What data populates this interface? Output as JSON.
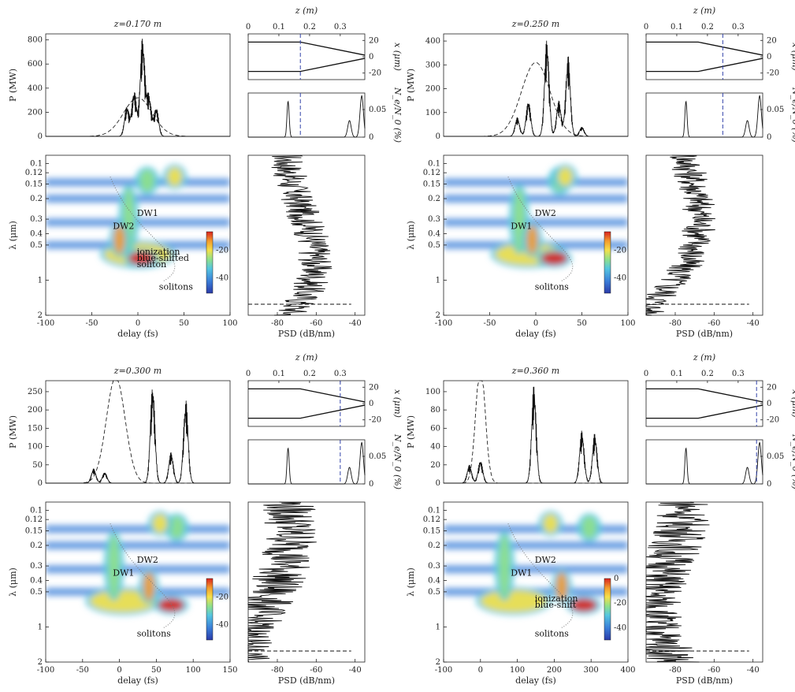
{
  "chart_data": [
    {
      "type": "spectrogram-panel",
      "title": "z=0.170 m",
      "power": {
        "ylabel": "P (MW)",
        "ylim": [
          0,
          850
        ],
        "yticks": [
          "0",
          "200",
          "400",
          "600",
          "800"
        ],
        "xlim": [
          -100,
          100
        ],
        "peak_delay": 5,
        "peak_value": 820,
        "envelope_delay": 0,
        "envelope_width": 22,
        "envelope_height": 320,
        "burst_delays": [
          -12,
          -4,
          5,
          12,
          20
        ],
        "burst_heights": [
          250,
          380,
          820,
          340,
          240
        ]
      },
      "geometry": {
        "xlabel_top": "z (m)",
        "xticks_top": [
          "0",
          "0.1",
          "0.2",
          "0.3"
        ],
        "zlim": [
          0,
          0.38
        ],
        "ylabel": "x (μm)",
        "yticks": [
          "20",
          "0",
          "-20"
        ],
        "ylim": [
          -28,
          28
        ],
        "taper_start": 0.17,
        "taper_end_radius": 2,
        "radius": 18,
        "marker_z": 0.17
      },
      "ionization": {
        "ylabel": "N_e/N_0 (%)",
        "yticks": [
          "0",
          "0.05"
        ],
        "ylim": [
          0,
          0.08
        ],
        "peaks_z": [
          0.13,
          0.33,
          0.37
        ],
        "peaks_val": [
          0.065,
          0.03,
          0.075
        ],
        "marker_z": 0.17
      },
      "spectrogram": {
        "ylabel": "λ (μm)",
        "xlabel": "delay (fs)",
        "yticks": [
          "0.1",
          "0.12",
          "0.15",
          "0.2",
          "0.3",
          "0.4",
          "0.5",
          "1",
          "2"
        ],
        "xticks": [
          "-100",
          "-50",
          "0",
          "50",
          "100"
        ],
        "xlim": [
          -100,
          100
        ],
        "colorbar_ticks": [
          "-20",
          "-40"
        ],
        "annotations": [
          "DW1",
          "DW2",
          "ionization",
          "blue-shifted",
          "soliton",
          "solitons"
        ]
      },
      "psd": {
        "xlabel": "PSD (dB/nm)",
        "xticks": [
          "-80",
          "-60",
          "-40"
        ],
        "xlim": [
          -95,
          -35
        ]
      }
    },
    {
      "type": "spectrogram-panel",
      "title": "z=0.250 m",
      "power": {
        "ylabel": "P (MW)",
        "ylim": [
          0,
          430
        ],
        "yticks": [
          "0",
          "100",
          "200",
          "300",
          "400"
        ],
        "xlim": [
          -100,
          100
        ],
        "peak_delay": 12,
        "peak_value": 410,
        "envelope_delay": 0,
        "envelope_width": 22,
        "envelope_height": 310,
        "burst_delays": [
          -20,
          -8,
          12,
          25,
          35,
          50
        ],
        "burst_heights": [
          80,
          150,
          410,
          150,
          340,
          40
        ]
      },
      "geometry": {
        "xlabel_top": "z (m)",
        "xticks_top": [
          "0",
          "0.1",
          "0.2",
          "0.3"
        ],
        "zlim": [
          0,
          0.38
        ],
        "ylabel": "x (μm)",
        "yticks": [
          "20",
          "0",
          "-20"
        ],
        "ylim": [
          -28,
          28
        ],
        "taper_start": 0.17,
        "taper_end_radius": 2,
        "radius": 18,
        "marker_z": 0.25
      },
      "ionization": {
        "ylabel": "N_e/N_0 (%)",
        "yticks": [
          "0",
          "0.05"
        ],
        "ylim": [
          0,
          0.08
        ],
        "peaks_z": [
          0.13,
          0.33,
          0.37
        ],
        "peaks_val": [
          0.065,
          0.03,
          0.075
        ],
        "marker_z": 0.25
      },
      "spectrogram": {
        "ylabel": "λ (μm)",
        "xlabel": "delay (fs)",
        "yticks": [
          "0.1",
          "0.12",
          "0.15",
          "0.2",
          "0.3",
          "0.4",
          "0.5",
          "1",
          "2"
        ],
        "xticks": [
          "-100",
          "-50",
          "0",
          "50",
          "100"
        ],
        "xlim": [
          -100,
          100
        ],
        "colorbar_ticks": [
          "-20",
          "-40"
        ],
        "annotations": [
          "DW2",
          "DW1",
          "solitons"
        ]
      },
      "psd": {
        "xlabel": "PSD (dB/nm)",
        "xticks": [
          "-80",
          "-60",
          "-40"
        ],
        "xlim": [
          -95,
          -35
        ]
      }
    },
    {
      "type": "spectrogram-panel",
      "title": "z=0.300 m",
      "power": {
        "ylabel": "P (MW)",
        "ylim": [
          0,
          280
        ],
        "yticks": [
          "0",
          "50",
          "100",
          "150",
          "200",
          "250"
        ],
        "xlim": [
          -100,
          150
        ],
        "peak_delay": 45,
        "peak_value": 270,
        "envelope_delay": -5,
        "envelope_width": 18,
        "envelope_height": 290,
        "burst_delays": [
          -35,
          -20,
          45,
          70,
          90
        ],
        "burst_heights": [
          40,
          30,
          270,
          85,
          230
        ]
      },
      "geometry": {
        "xlabel_top": "z (m)",
        "xticks_top": [
          "0",
          "0.1",
          "0.2",
          "0.3"
        ],
        "zlim": [
          0,
          0.38
        ],
        "ylabel": "x (μm)",
        "yticks": [
          "20",
          "0",
          "-20"
        ],
        "ylim": [
          -28,
          28
        ],
        "taper_start": 0.17,
        "taper_end_radius": 2,
        "radius": 18,
        "marker_z": 0.3
      },
      "ionization": {
        "ylabel": "N_e/N_0 (%)",
        "yticks": [
          "0",
          "0.05"
        ],
        "ylim": [
          0,
          0.08
        ],
        "peaks_z": [
          0.13,
          0.33,
          0.37
        ],
        "peaks_val": [
          0.065,
          0.03,
          0.075
        ],
        "marker_z": 0.3
      },
      "spectrogram": {
        "ylabel": "λ (μm)",
        "xlabel": "delay (fs)",
        "yticks": [
          "0.1",
          "0.12",
          "0.15",
          "0.2",
          "0.3",
          "0.4",
          "0.5",
          "1",
          "2"
        ],
        "xticks": [
          "-100",
          "-50",
          "0",
          "50",
          "100",
          "150"
        ],
        "xlim": [
          -100,
          150
        ],
        "colorbar_ticks": [
          "-20",
          "-40"
        ],
        "annotations": [
          "DW2",
          "DW1",
          "solitons"
        ]
      },
      "psd": {
        "xlabel": "PSD (dB/nm)",
        "xticks": [
          "-80",
          "-60",
          "-40"
        ],
        "xlim": [
          -95,
          -35
        ]
      }
    },
    {
      "type": "spectrogram-panel",
      "title": "z=0.360 m",
      "power": {
        "ylabel": "P (MW)",
        "ylim": [
          0,
          112
        ],
        "yticks": [
          "0",
          "20",
          "40",
          "60",
          "80",
          "100"
        ],
        "xlim": [
          -100,
          400
        ],
        "peak_delay": 145,
        "peak_value": 108,
        "envelope_delay": 0,
        "envelope_width": 18,
        "envelope_height": 130,
        "burst_delays": [
          -30,
          0,
          145,
          275,
          310
        ],
        "burst_heights": [
          20,
          25,
          108,
          58,
          55
        ]
      },
      "geometry": {
        "xlabel_top": "z (m)",
        "xticks_top": [
          "0",
          "0.1",
          "0.2",
          "0.3"
        ],
        "zlim": [
          0,
          0.38
        ],
        "ylabel": "x (μm)",
        "yticks": [
          "20",
          "0",
          "-20"
        ],
        "ylim": [
          -28,
          28
        ],
        "taper_start": 0.17,
        "taper_end_radius": 2,
        "radius": 18,
        "marker_z": 0.36
      },
      "ionization": {
        "ylabel": "N_e/N_0 (%)",
        "yticks": [
          "0",
          "0.05"
        ],
        "ylim": [
          0,
          0.08
        ],
        "peaks_z": [
          0.13,
          0.33,
          0.37
        ],
        "peaks_val": [
          0.065,
          0.03,
          0.075
        ],
        "marker_z": 0.36
      },
      "spectrogram": {
        "ylabel": "λ (μm)",
        "xlabel": "delay (fs)",
        "yticks": [
          "0.1",
          "0.12",
          "0.15",
          "0.2",
          "0.3",
          "0.4",
          "0.5",
          "1",
          "2"
        ],
        "xticks": [
          "-100",
          "0",
          "100",
          "200",
          "300",
          "400"
        ],
        "xlim": [
          -100,
          400
        ],
        "colorbar_ticks": [
          "0",
          "-20",
          "-40"
        ],
        "annotations": [
          "DW2",
          "DW1",
          "ionization",
          "blue-shift",
          "solitons"
        ]
      },
      "psd": {
        "xlabel": "PSD (dB/nm)",
        "xticks": [
          "-80",
          "-60",
          "-40"
        ],
        "xlim": [
          -95,
          -35
        ]
      }
    }
  ],
  "colors": {
    "line": "#111111",
    "marker": "#3344aa",
    "cmap": [
      "#2a3aa8",
      "#3b7fd8",
      "#55c5e0",
      "#8fe08a",
      "#f4e04a",
      "#f39a2c",
      "#d8221e"
    ]
  }
}
